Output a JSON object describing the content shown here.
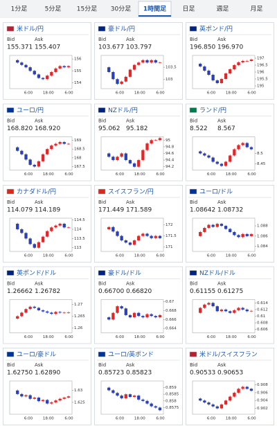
{
  "tabs": [
    "1分足",
    "5分足",
    "15分足",
    "30分足",
    "1時間足",
    "日足",
    "週足",
    "月足"
  ],
  "selected_tab": 4,
  "labels": {
    "bid": "Bid",
    "ask": "Ask"
  },
  "time_labels": [
    "6:00",
    "18:00",
    "6:00"
  ],
  "cards": [
    {
      "name": "米ドル/円",
      "bid": "155.371",
      "ask": "155.407",
      "chart": {
        "type": "candlestick",
        "ylim": [
          153.5,
          156.3
        ],
        "yticks": [
          154,
          155,
          156
        ],
        "values": [
          155.9,
          155.7,
          155.5,
          155.3,
          155.0,
          154.7,
          154.4,
          154.3,
          154.6,
          154.9,
          155.2,
          155.4,
          155.3,
          155.4
        ]
      }
    },
    {
      "name": "豪ドル/円",
      "bid": "103.677",
      "ask": "103.797",
      "chart": {
        "type": "candlestick",
        "ylim": [
          102.6,
          104
        ],
        "yticks": [
          103,
          103.5
        ],
        "values": [
          103.5,
          103.3,
          103.0,
          102.8,
          102.9,
          103.1,
          103.4,
          103.6,
          103.7,
          103.8,
          103.7,
          103.8,
          103.7,
          103.7
        ]
      }
    },
    {
      "name": "英ポンド/円",
      "bid": "196.850",
      "ask": "196.970",
      "chart": {
        "type": "candlestick",
        "ylim": [
          194.8,
          197.2
        ],
        "yticks": [
          195,
          195.5,
          196,
          196.5,
          197
        ],
        "values": [
          196.6,
          196.4,
          196.1,
          195.8,
          195.4,
          195.2,
          195.5,
          195.9,
          196.2,
          196.5,
          196.7,
          196.8,
          196.8,
          196.9
        ]
      }
    },
    {
      "name": "ユーロ/円",
      "bid": "168.820",
      "ask": "168.920",
      "chart": {
        "type": "candlestick",
        "ylim": [
          167.3,
          169.2
        ],
        "yticks": [
          167.5,
          168,
          168.5,
          169
        ],
        "values": [
          168.6,
          168.4,
          168.2,
          167.9,
          167.6,
          167.5,
          167.8,
          168.2,
          168.5,
          168.7,
          168.8,
          168.9,
          168.8,
          168.8
        ]
      }
    },
    {
      "name": "NZドル/円",
      "bid": "95.062",
      "ask": "95.182",
      "chart": {
        "type": "candlestick",
        "ylim": [
          94.1,
          95.1
        ],
        "yticks": [
          94.2,
          94.4,
          94.6,
          94.8,
          95
        ],
        "values": [
          94.6,
          94.5,
          94.4,
          94.5,
          94.6,
          94.4,
          94.3,
          94.2,
          94.4,
          94.7,
          94.9,
          95.0,
          95.0,
          95.06
        ]
      }
    },
    {
      "name": "ランド/円",
      "bid": "8.522",
      "ask": "8.567",
      "chart": {
        "type": "candlestick",
        "ylim": [
          8.42,
          8.58
        ],
        "yticks": [
          8.45,
          8.5
        ],
        "values": [
          8.51,
          8.5,
          8.49,
          8.48,
          8.46,
          8.45,
          8.44,
          8.46,
          8.49,
          8.52,
          8.54,
          8.55,
          8.53,
          8.52
        ]
      }
    },
    {
      "name": "カナダドル/円",
      "bid": "114.079",
      "ask": "114.189",
      "chart": {
        "type": "candlestick",
        "ylim": [
          112.8,
          114.6
        ],
        "yticks": [
          113,
          113.5,
          114,
          114.5
        ],
        "values": [
          114.3,
          114.0,
          113.8,
          113.5,
          113.2,
          113.0,
          113.3,
          113.6,
          113.9,
          114.1,
          114.2,
          114.3,
          114.1,
          114.1
        ]
      }
    },
    {
      "name": "スイスフラン/円",
      "bid": "171.449",
      "ask": "171.589",
      "chart": {
        "type": "candlestick",
        "ylim": [
          170.8,
          172.3
        ],
        "yticks": [
          171,
          171.5,
          172
        ],
        "values": [
          171.8,
          171.9,
          171.7,
          171.5,
          171.3,
          171.2,
          171.1,
          171.3,
          171.5,
          171.6,
          171.5,
          171.4,
          171.5,
          171.4
        ]
      }
    },
    {
      "name": "ユーロ/ドル",
      "bid": "1.08642",
      "ask": "1.08732",
      "chart": {
        "type": "candlestick",
        "ylim": [
          1.083,
          1.0895
        ],
        "yticks": [
          1.084,
          1.086,
          1.088
        ],
        "values": [
          1.086,
          1.0868,
          1.0876,
          1.0882,
          1.0878,
          1.0884,
          1.088,
          1.0874,
          1.0868,
          1.0862,
          1.0858,
          1.0864,
          1.086,
          1.0864
        ]
      }
    },
    {
      "name": "英ポンド/ドル",
      "bid": "1.26662",
      "ask": "1.26782",
      "chart": {
        "type": "candlestick",
        "ylim": [
          1.258,
          1.272
        ],
        "yticks": [
          1.26,
          1.265,
          1.27
        ],
        "values": [
          1.264,
          1.265,
          1.2665,
          1.268,
          1.269,
          1.2685,
          1.2675,
          1.267,
          1.2665,
          1.266,
          1.2668,
          1.2665,
          1.2665,
          1.2666
        ]
      }
    },
    {
      "name": "豪ドル/ドル",
      "bid": "0.66700",
      "ask": "0.66820",
      "chart": {
        "type": "candlestick",
        "ylim": [
          0.663,
          0.6705
        ],
        "yticks": [
          0.664,
          0.666,
          0.668,
          0.67
        ],
        "values": [
          0.6665,
          0.666,
          0.6675,
          0.669,
          0.6685,
          0.667,
          0.6665,
          0.6675,
          0.6668,
          0.6665,
          0.6672,
          0.6668,
          0.6665,
          0.667
        ]
      }
    },
    {
      "name": "NZドル/ドル",
      "bid": "0.61155",
      "ask": "0.61275",
      "chart": {
        "type": "candlestick",
        "ylim": [
          0.605,
          0.615
        ],
        "yticks": [
          0.606,
          0.608,
          0.61,
          0.612,
          0.614
        ],
        "values": [
          0.611,
          0.6125,
          0.6135,
          0.614,
          0.613,
          0.6115,
          0.612,
          0.6115,
          0.611,
          0.6118,
          0.6125,
          0.612,
          0.6115,
          0.6116
        ]
      }
    },
    {
      "name": "ユーロ/豪ドル",
      "bid": "1.62750",
      "ask": "1.62890",
      "chart": {
        "type": "candlestick",
        "ylim": [
          1.62,
          1.634
        ],
        "yticks": [
          1.625,
          1.63
        ],
        "values": [
          1.63,
          1.6285,
          1.6275,
          1.628,
          1.6265,
          1.627,
          1.6255,
          1.626,
          1.6245,
          1.625,
          1.6258,
          1.6265,
          1.627,
          1.6275
        ]
      }
    },
    {
      "name": "ユーロ/英ポンド",
      "bid": "0.85723",
      "ask": "0.85823",
      "chart": {
        "type": "candlestick",
        "ylim": [
          0.857,
          0.8595
        ],
        "yticks": [
          0.8575,
          0.858,
          0.8585,
          0.859
        ],
        "values": [
          0.859,
          0.8588,
          0.8586,
          0.8584,
          0.8582,
          0.8585,
          0.8583,
          0.8584,
          0.8581,
          0.858,
          0.8578,
          0.8576,
          0.8575,
          0.8573
        ]
      }
    },
    {
      "name": "米ドル/スイスフラン",
      "bid": "0.90533",
      "ask": "0.90653",
      "chart": {
        "type": "candlestick",
        "ylim": [
          0.9005,
          0.909
        ],
        "yticks": [
          0.902,
          0.904,
          0.906,
          0.908
        ],
        "values": [
          0.9045,
          0.904,
          0.9035,
          0.903,
          0.9025,
          0.902,
          0.903,
          0.904,
          0.905,
          0.906,
          0.907,
          0.9075,
          0.907,
          0.9065
        ]
      }
    }
  ]
}
